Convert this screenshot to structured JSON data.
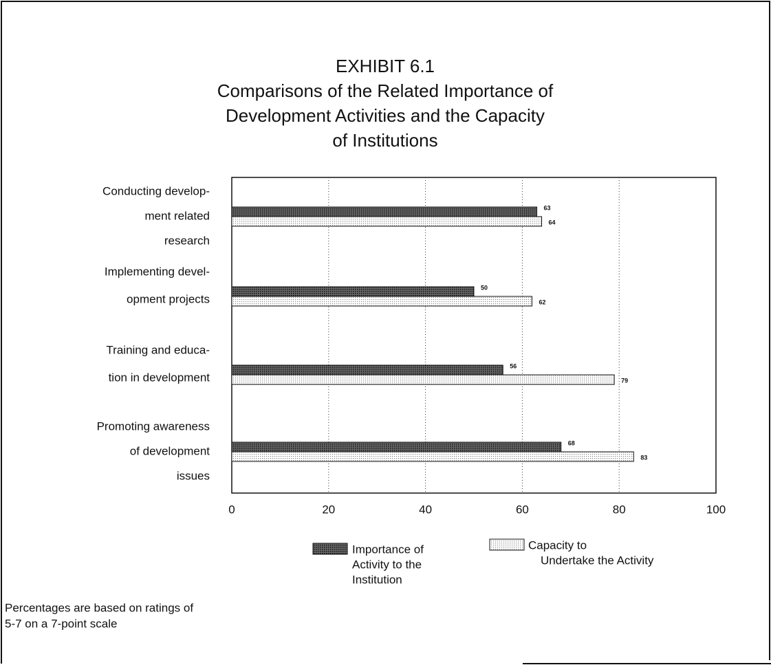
{
  "chart_data": {
    "type": "bar",
    "orientation": "horizontal",
    "title": [
      "EXHIBIT 6.1",
      "Comparisons of the Related Importance of",
      "Development Activities and the Capacity",
      "of Institutions"
    ],
    "categories": [
      [
        "Conducting develop-",
        "ment related",
        "research"
      ],
      [
        "Implementing devel-",
        "opment projects"
      ],
      [
        "Training and educa-",
        "tion in development"
      ],
      [
        "Promoting awareness",
        "of development",
        "issues"
      ]
    ],
    "series": [
      {
        "name": [
          "Importance of",
          "Activity to the",
          "Institution"
        ],
        "color": "#2e2e2e",
        "values": [
          63,
          50,
          56,
          68
        ]
      },
      {
        "name": [
          "Capacity to",
          "Undertake the Activity"
        ],
        "color": "#d9d9d9",
        "values": [
          64,
          62,
          79,
          83
        ]
      }
    ],
    "xlim": [
      0,
      100
    ],
    "xticks": [
      0,
      20,
      40,
      60,
      80,
      100
    ],
    "grid": true,
    "note": [
      "Percentages are based on ratings of",
      "5-7 on a 7-point scale"
    ]
  }
}
